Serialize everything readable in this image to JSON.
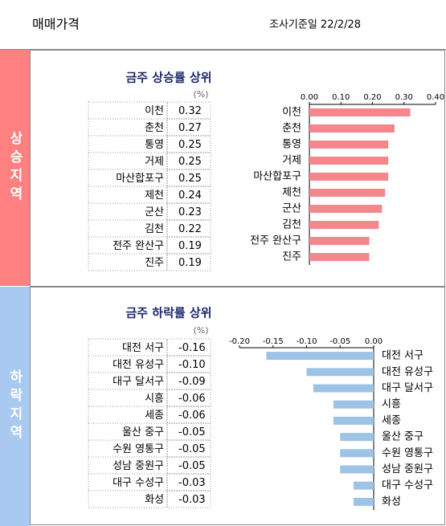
{
  "header": {
    "title": "매매가격",
    "date": "조사기준일 22/2/28"
  },
  "sections": [
    {
      "label": "상승지역",
      "unit": "(%)",
      "table": [
        [
          "이천",
          "0.32"
        ],
        [
          "춘천",
          "0.27"
        ],
        [
          "통영",
          "0.25"
        ],
        [
          "거제",
          "0.25"
        ],
        [
          "마산합포구",
          "0.25"
        ],
        [
          "제천",
          "0.24"
        ],
        [
          "군산",
          "0.23"
        ],
        [
          "김천",
          "0.22"
        ],
        [
          "전주 완산구",
          "0.19"
        ],
        [
          "진주",
          "0.19"
        ]
      ]
    },
    {
      "label": "하락지역",
      "unit": "(%)",
      "table": [
        [
          "대전 서구",
          "-0.16"
        ],
        [
          "대전 유성구",
          "-0.10"
        ],
        [
          "대구 달서구",
          "-0.09"
        ],
        [
          "시흥",
          "-0.06"
        ],
        [
          "세종",
          "-0.06"
        ],
        [
          "울산 중구",
          "-0.05"
        ],
        [
          "수원 영통구",
          "-0.05"
        ],
        [
          "성남 중원구",
          "-0.05"
        ],
        [
          "대구 수성구",
          "-0.03"
        ],
        [
          "화성",
          "-0.03"
        ]
      ]
    }
  ],
  "chart_data": [
    {
      "type": "bar",
      "title": "금주 상승률 상위",
      "categories": [
        "이천",
        "춘천",
        "통영",
        "거제",
        "마산합포구",
        "제천",
        "군산",
        "김천",
        "전주 완산구",
        "진주"
      ],
      "values": [
        0.32,
        0.27,
        0.25,
        0.25,
        0.25,
        0.24,
        0.23,
        0.22,
        0.19,
        0.19
      ],
      "color": "#f4878b",
      "xlim": [
        0,
        0.4
      ],
      "xticks": [
        {
          "value": 0,
          "label": "0.00"
        },
        {
          "value": 0.1,
          "label": "0.10"
        },
        {
          "value": 0.2,
          "label": "0.20"
        },
        {
          "value": 0.3,
          "label": "0.30"
        },
        {
          "value": 0.4,
          "label": "0.40"
        }
      ],
      "grid": false
    },
    {
      "type": "bar",
      "title": "금주 하락률 상위",
      "categories": [
        "대전 서구",
        "대전 유성구",
        "대구 달서구",
        "시흥",
        "세종",
        "울산 중구",
        "수원 영통구",
        "성남 중원구",
        "대구 수성구",
        "화성"
      ],
      "values": [
        -0.16,
        -0.1,
        -0.09,
        -0.06,
        -0.06,
        -0.05,
        -0.05,
        -0.05,
        -0.03,
        -0.03
      ],
      "color": "#9dc3e6",
      "xlim": [
        -0.2,
        0
      ],
      "xticks": [
        {
          "value": -0.2,
          "label": "-0.20"
        },
        {
          "value": -0.15,
          "label": "-0.15"
        },
        {
          "value": -0.1,
          "label": "-0.10"
        },
        {
          "value": -0.05,
          "label": "-0.05"
        },
        {
          "value": 0,
          "label": "0.00"
        }
      ],
      "grid": false
    }
  ]
}
